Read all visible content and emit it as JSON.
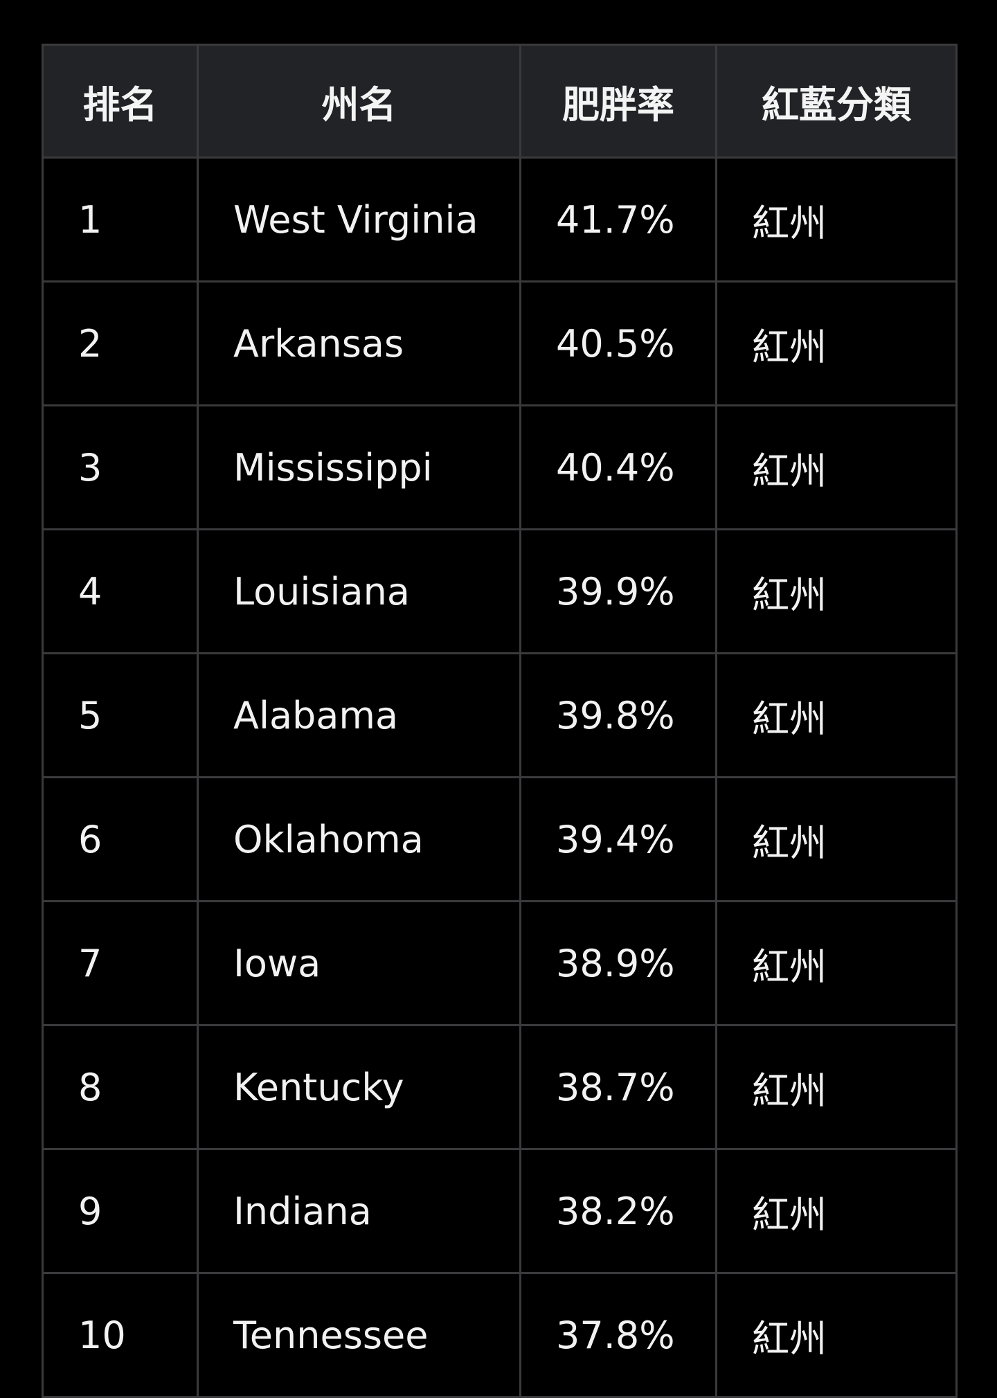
{
  "table": {
    "headers": [
      "排名",
      "州名",
      "肥胖率",
      "紅藍分類"
    ],
    "rows": [
      {
        "rank": "1",
        "state": "West Virginia",
        "rate": "41.7%",
        "party": "紅州"
      },
      {
        "rank": "2",
        "state": "Arkansas",
        "rate": "40.5%",
        "party": "紅州"
      },
      {
        "rank": "3",
        "state": "Mississippi",
        "rate": "40.4%",
        "party": "紅州"
      },
      {
        "rank": "4",
        "state": "Louisiana",
        "rate": "39.9%",
        "party": "紅州"
      },
      {
        "rank": "5",
        "state": "Alabama",
        "rate": "39.8%",
        "party": "紅州"
      },
      {
        "rank": "6",
        "state": "Oklahoma",
        "rate": "39.4%",
        "party": "紅州"
      },
      {
        "rank": "7",
        "state": "Iowa",
        "rate": "38.9%",
        "party": "紅州"
      },
      {
        "rank": "8",
        "state": "Kentucky",
        "rate": "38.7%",
        "party": "紅州"
      },
      {
        "rank": "9",
        "state": "Indiana",
        "rate": "38.2%",
        "party": "紅州"
      },
      {
        "rank": "10",
        "state": "Tennessee",
        "rate": "37.8%",
        "party": "紅州"
      }
    ]
  },
  "colors": {
    "background": "#000000",
    "header_background": "#212326",
    "border": "#3a3a3c",
    "text": "#f2f2f2"
  }
}
